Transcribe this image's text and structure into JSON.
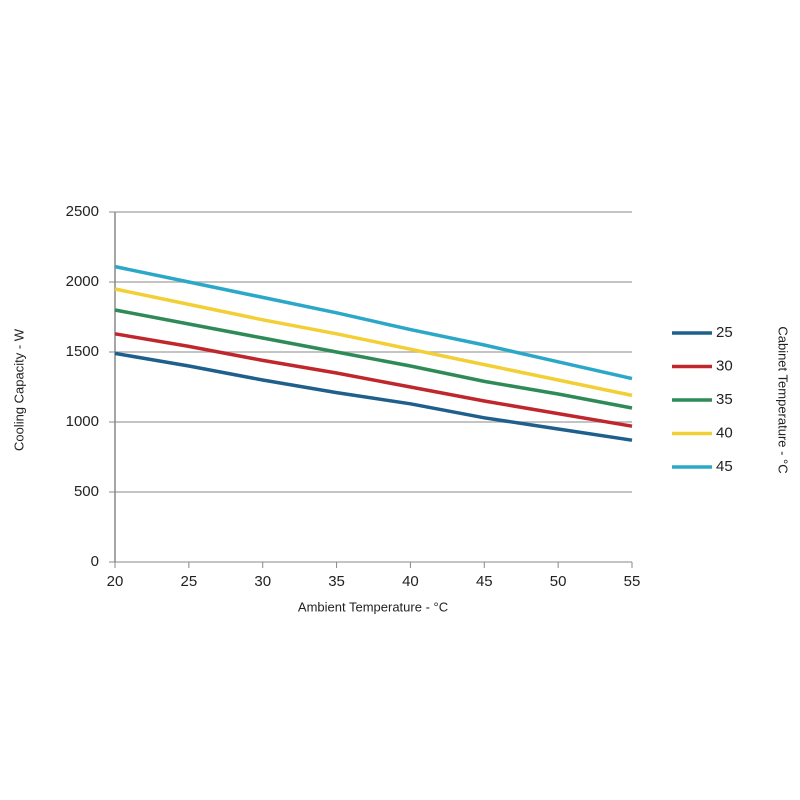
{
  "chart_data": {
    "type": "line",
    "x_label": "Ambient Temperature - °C",
    "y_label": "Cooling Capacity - W",
    "legend_title": "Cabinet Temperature - °C",
    "legend_position": "right",
    "grid": true,
    "x": [
      20,
      25,
      30,
      35,
      40,
      45,
      50,
      55
    ],
    "xlim": [
      20,
      55
    ],
    "xticks": [
      20,
      25,
      30,
      35,
      40,
      45,
      50,
      55
    ],
    "ylim": [
      0,
      2500
    ],
    "yticks": [
      0,
      500,
      1000,
      1500,
      2000,
      2500
    ],
    "series": [
      {
        "name": "25",
        "color": "#1f5f8b",
        "values": [
          1490,
          1400,
          1300,
          1210,
          1130,
          1030,
          950,
          870
        ]
      },
      {
        "name": "30",
        "color": "#c0272d",
        "values": [
          1630,
          1540,
          1440,
          1350,
          1250,
          1150,
          1060,
          970
        ]
      },
      {
        "name": "35",
        "color": "#2e8b57",
        "values": [
          1800,
          1700,
          1600,
          1500,
          1400,
          1290,
          1200,
          1100
        ]
      },
      {
        "name": "40",
        "color": "#f2cf35",
        "values": [
          1950,
          1840,
          1730,
          1630,
          1520,
          1410,
          1300,
          1190
        ]
      },
      {
        "name": "45",
        "color": "#2ba8c8",
        "values": [
          2110,
          2000,
          1890,
          1780,
          1660,
          1550,
          1430,
          1310
        ]
      }
    ]
  }
}
